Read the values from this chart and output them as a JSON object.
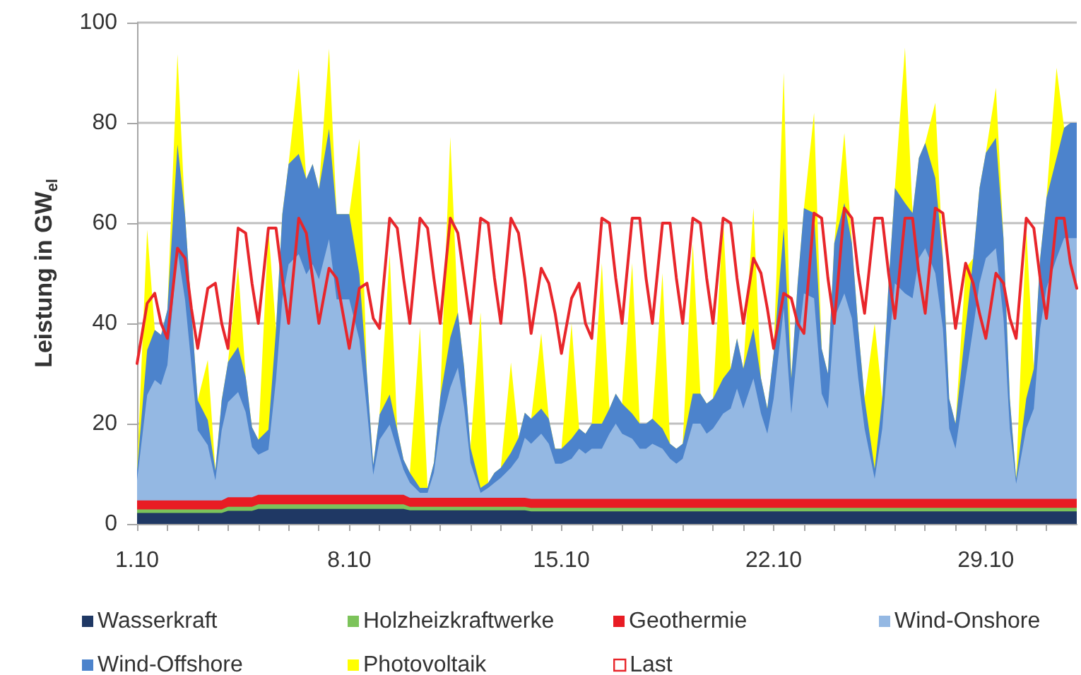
{
  "chart_data": {
    "type": "area",
    "stacked": true,
    "ylabel": "Leistung in GW$_{el}$",
    "xlim": [
      "--10-01",
      "--11-01"
    ],
    "xticks": [
      {
        "value": "--10-01",
        "label": "1.10"
      },
      {
        "value": "--10-02",
        "label": null
      },
      {
        "value": "--10-03",
        "label": null
      },
      {
        "value": "--10-04",
        "label": null
      },
      {
        "value": "--10-05",
        "label": null
      },
      {
        "value": "--10-06",
        "label": null
      },
      {
        "value": "--10-07",
        "label": null
      },
      {
        "value": "--10-08",
        "label": "8.10"
      },
      {
        "value": "--10-09",
        "label": null
      },
      {
        "value": "--10-10",
        "label": null
      },
      {
        "value": "--10-11",
        "label": null
      },
      {
        "value": "--10-12",
        "label": null
      },
      {
        "value": "--10-13",
        "label": null
      },
      {
        "value": "--10-14",
        "label": null
      },
      {
        "value": "--10-15",
        "label": "15.10"
      },
      {
        "value": "--10-16",
        "label": null
      },
      {
        "value": "--10-17",
        "label": null
      },
      {
        "value": "--10-18",
        "label": null
      },
      {
        "value": "--10-19",
        "label": null
      },
      {
        "value": "--10-20",
        "label": null
      },
      {
        "value": "--10-21",
        "label": null
      },
      {
        "value": "--10-22",
        "label": "22.10"
      },
      {
        "value": "--10-23",
        "label": null
      },
      {
        "value": "--10-24",
        "label": null
      },
      {
        "value": "--10-25",
        "label": null
      },
      {
        "value": "--10-26",
        "label": null
      },
      {
        "value": "--10-27",
        "label": null
      },
      {
        "value": "--10-28",
        "label": null
      },
      {
        "value": "--10-29",
        "label": "29.10"
      },
      {
        "value": "--10-30",
        "label": null
      },
      {
        "value": "--10-31",
        "label": null
      }
    ],
    "ylim": [
      0,
      100
    ],
    "yticks": [
      0,
      20,
      40,
      60,
      80,
      100
    ],
    "grid": "y",
    "legend": "bottom",
    "x": [
      "--10-01T00:00",
      "--10-01T08:00",
      "--10-01T14:00",
      "--10-01T19:00",
      "--10-02T00:00",
      "--10-02T08:00",
      "--10-02T14:00",
      "--10-02T19:00",
      "--10-03T00:00",
      "--10-03T08:00",
      "--10-03T14:00",
      "--10-03T19:00",
      "--10-04T00:00",
      "--10-04T08:00",
      "--10-04T14:00",
      "--10-04T19:00",
      "--10-05T00:00",
      "--10-05T08:00",
      "--10-05T14:00",
      "--10-05T19:00",
      "--10-06T00:00",
      "--10-06T08:00",
      "--10-06T14:00",
      "--10-06T19:00",
      "--10-07T00:00",
      "--10-07T08:00",
      "--10-07T14:00",
      "--10-07T19:00",
      "--10-08T00:00",
      "--10-08T08:00",
      "--10-08T14:00",
      "--10-08T19:00",
      "--10-09T00:00",
      "--10-09T08:00",
      "--10-09T14:00",
      "--10-09T19:00",
      "--10-10T00:00",
      "--10-10T08:00",
      "--10-10T14:00",
      "--10-10T19:00",
      "--10-11T00:00",
      "--10-11T08:00",
      "--10-11T14:00",
      "--10-11T19:00",
      "--10-12T00:00",
      "--10-12T08:00",
      "--10-12T14:00",
      "--10-12T19:00",
      "--10-13T00:00",
      "--10-13T08:00",
      "--10-13T14:00",
      "--10-13T19:00",
      "--10-14T00:00",
      "--10-14T08:00",
      "--10-14T14:00",
      "--10-14T19:00",
      "--10-15T00:00",
      "--10-15T08:00",
      "--10-15T14:00",
      "--10-15T19:00",
      "--10-16T00:00",
      "--10-16T08:00",
      "--10-16T14:00",
      "--10-16T19:00",
      "--10-17T00:00",
      "--10-17T08:00",
      "--10-17T14:00",
      "--10-17T19:00",
      "--10-18T00:00",
      "--10-18T08:00",
      "--10-18T14:00",
      "--10-18T19:00",
      "--10-19T00:00",
      "--10-19T08:00",
      "--10-19T14:00",
      "--10-19T19:00",
      "--10-20T00:00",
      "--10-20T08:00",
      "--10-20T14:00",
      "--10-20T19:00",
      "--10-21T00:00",
      "--10-21T08:00",
      "--10-21T14:00",
      "--10-21T19:00",
      "--10-22T00:00",
      "--10-22T08:00",
      "--10-22T14:00",
      "--10-22T19:00",
      "--10-23T00:00",
      "--10-23T08:00",
      "--10-23T14:00",
      "--10-23T19:00",
      "--10-24T00:00",
      "--10-24T08:00",
      "--10-24T14:00",
      "--10-24T19:00",
      "--10-25T00:00",
      "--10-25T08:00",
      "--10-25T14:00",
      "--10-25T19:00",
      "--10-26T00:00",
      "--10-26T08:00",
      "--10-26T14:00",
      "--10-26T19:00",
      "--10-27T00:00",
      "--10-27T08:00",
      "--10-27T14:00",
      "--10-27T19:00",
      "--10-28T00:00",
      "--10-28T08:00",
      "--10-28T14:00",
      "--10-28T19:00",
      "--10-29T00:00",
      "--10-29T08:00",
      "--10-29T14:00",
      "--10-29T19:00",
      "--10-30T00:00",
      "--10-30T08:00",
      "--10-30T14:00",
      "--10-30T19:00",
      "--10-31T00:00",
      "--10-31T08:00",
      "--10-31T14:00",
      "--10-31T19:00",
      "--11-01T00:00"
    ],
    "series": [
      {
        "name": "Wasserkraft",
        "color": "#1f3864",
        "values": [
          2.2,
          2.2,
          2.2,
          2.2,
          2.2,
          2.2,
          2.2,
          2.2,
          2.2,
          2.2,
          2.2,
          2.2,
          2.6,
          2.6,
          2.6,
          2.6,
          3,
          3,
          3,
          3,
          3,
          3,
          3,
          3,
          3,
          3,
          3,
          3,
          3,
          3,
          3,
          3,
          3,
          3,
          3,
          3,
          2.7,
          2.7,
          2.7,
          2.7,
          2.7,
          2.7,
          2.7,
          2.7,
          2.7,
          2.7,
          2.7,
          2.7,
          2.7,
          2.7,
          2.7,
          2.7,
          2.5,
          2.5,
          2.5,
          2.5,
          2.5,
          2.5,
          2.5,
          2.5,
          2.5,
          2.5,
          2.5,
          2.5,
          2.5,
          2.5,
          2.5,
          2.5,
          2.5,
          2.5,
          2.5,
          2.5,
          2.5,
          2.5,
          2.5,
          2.5,
          2.5,
          2.5,
          2.5,
          2.5,
          2.5,
          2.5,
          2.5,
          2.5,
          2.5,
          2.5,
          2.5,
          2.5,
          2.5,
          2.5,
          2.5,
          2.5,
          2.5,
          2.5,
          2.5,
          2.5,
          2.5,
          2.5,
          2.5,
          2.5,
          2.5,
          2.5,
          2.5,
          2.5,
          2.5,
          2.5,
          2.5,
          2.5,
          2.5,
          2.5,
          2.5,
          2.5,
          2.5,
          2.5,
          2.5,
          2.5,
          2.5,
          2.5,
          2.5,
          2.5,
          2.5,
          2.5,
          2.5,
          2.5,
          2.5
        ]
      },
      {
        "name": "Holzheizkraftwerke",
        "color": "#7cc35a",
        "values": [
          0.7,
          0.7,
          0.7,
          0.7,
          0.7,
          0.7,
          0.7,
          0.7,
          0.7,
          0.7,
          0.7,
          0.7,
          0.8,
          0.8,
          0.8,
          0.8,
          0.9,
          0.9,
          0.9,
          0.9,
          0.9,
          0.9,
          0.9,
          0.9,
          0.9,
          0.9,
          0.9,
          0.9,
          0.9,
          0.9,
          0.9,
          0.9,
          0.9,
          0.9,
          0.9,
          0.9,
          0.7,
          0.7,
          0.7,
          0.7,
          0.7,
          0.7,
          0.7,
          0.7,
          0.7,
          0.7,
          0.7,
          0.7,
          0.7,
          0.7,
          0.7,
          0.7,
          0.7,
          0.7,
          0.7,
          0.7,
          0.7,
          0.7,
          0.7,
          0.7,
          0.7,
          0.7,
          0.7,
          0.7,
          0.7,
          0.7,
          0.7,
          0.7,
          0.7,
          0.7,
          0.7,
          0.7,
          0.7,
          0.7,
          0.7,
          0.7,
          0.7,
          0.7,
          0.7,
          0.7,
          0.7,
          0.7,
          0.7,
          0.7,
          0.7,
          0.7,
          0.7,
          0.7,
          0.7,
          0.7,
          0.7,
          0.7,
          0.7,
          0.7,
          0.7,
          0.7,
          0.7,
          0.7,
          0.7,
          0.7,
          0.7,
          0.7,
          0.7,
          0.7,
          0.7,
          0.7,
          0.7,
          0.7,
          0.7,
          0.7,
          0.7,
          0.7,
          0.7,
          0.7,
          0.7,
          0.7,
          0.7,
          0.7,
          0.7,
          0.7,
          0.7,
          0.7,
          0.7,
          0.7,
          0.7
        ]
      },
      {
        "name": "Geothermie",
        "color": "#e81c24",
        "values": [
          1.8,
          1.8,
          1.8,
          1.8,
          1.8,
          1.8,
          1.8,
          1.8,
          1.8,
          1.8,
          1.8,
          1.8,
          1.9,
          1.9,
          1.9,
          1.9,
          1.9,
          1.9,
          1.9,
          1.9,
          1.9,
          1.9,
          1.9,
          1.9,
          1.9,
          1.9,
          1.9,
          1.9,
          1.9,
          1.9,
          1.9,
          1.9,
          1.9,
          1.9,
          1.9,
          1.9,
          1.8,
          1.8,
          1.8,
          1.8,
          1.8,
          1.8,
          1.8,
          1.8,
          1.8,
          1.8,
          1.8,
          1.8,
          1.8,
          1.8,
          1.8,
          1.8,
          1.8,
          1.8,
          1.8,
          1.8,
          1.8,
          1.8,
          1.8,
          1.8,
          1.8,
          1.8,
          1.8,
          1.8,
          1.8,
          1.8,
          1.8,
          1.8,
          1.8,
          1.8,
          1.8,
          1.8,
          1.8,
          1.8,
          1.8,
          1.8,
          1.8,
          1.8,
          1.8,
          1.8,
          1.8,
          1.8,
          1.8,
          1.8,
          1.8,
          1.8,
          1.8,
          1.8,
          1.8,
          1.8,
          1.8,
          1.8,
          1.8,
          1.8,
          1.8,
          1.8,
          1.8,
          1.8,
          1.8,
          1.8,
          1.8,
          1.8,
          1.8,
          1.8,
          1.8,
          1.8,
          1.8,
          1.8,
          1.8,
          1.8,
          1.8,
          1.8,
          1.8,
          1.8,
          1.8,
          1.8,
          1.8,
          1.8,
          1.8,
          1.8,
          1.8,
          1.8,
          1.8,
          1.8,
          1.8
        ]
      },
      {
        "name": "Wind-Onshore",
        "color": "#94b8e3",
        "values": [
          4,
          21,
          24,
          23,
          27,
          50,
          40,
          27,
          14,
          11,
          4,
          14,
          19,
          21,
          17,
          10,
          8,
          9,
          23,
          39,
          46,
          48,
          44,
          46,
          43,
          51,
          39,
          39,
          39,
          31,
          17,
          4,
          11,
          14,
          9,
          5,
          3,
          1,
          1,
          5,
          14,
          22,
          26,
          18,
          7,
          1,
          2,
          3,
          4,
          6,
          8,
          12,
          11,
          13,
          11,
          7,
          7,
          8,
          10,
          9,
          10,
          10,
          13,
          15,
          13,
          12,
          10,
          10,
          11,
          10,
          8,
          7,
          8,
          15,
          15,
          13,
          14,
          17,
          18,
          22,
          18,
          24,
          17,
          13,
          20,
          38,
          17,
          30,
          41,
          40,
          21,
          18,
          36,
          41,
          36,
          24,
          14,
          4,
          14,
          30,
          43,
          41,
          40,
          48,
          50,
          45,
          34,
          14,
          10,
          24,
          34,
          43,
          48,
          50,
          36,
          14,
          3,
          14,
          18,
          34,
          42,
          48,
          52,
          52,
          52
        ]
      },
      {
        "name": "Wind-Offshore",
        "color": "#4c83cc",
        "values": [
          2,
          9,
          10,
          10,
          11,
          21,
          17,
          11,
          6,
          5,
          2,
          6,
          8,
          9,
          7,
          4,
          3,
          4,
          10,
          17,
          20,
          20,
          19,
          20,
          18,
          22,
          17,
          17,
          17,
          13,
          7,
          2,
          5,
          6,
          4,
          2,
          2,
          1,
          1,
          2,
          6,
          10,
          11,
          8,
          3,
          1,
          1,
          2,
          2,
          3,
          4,
          5,
          5,
          5,
          5,
          3,
          3,
          4,
          4,
          4,
          5,
          5,
          5,
          6,
          6,
          5,
          5,
          5,
          5,
          4,
          3,
          3,
          3,
          6,
          6,
          6,
          6,
          7,
          8,
          10,
          8,
          10,
          7,
          5,
          9,
          16,
          7,
          13,
          17,
          17,
          9,
          7,
          15,
          18,
          15,
          10,
          6,
          2,
          6,
          13,
          19,
          18,
          17,
          20,
          21,
          19,
          14,
          6,
          5,
          10,
          14,
          19,
          21,
          22,
          16,
          6,
          1,
          6,
          8,
          14,
          18,
          20,
          22,
          23,
          23
        ]
      },
      {
        "name": "Photovoltaik",
        "color": "#ffff00",
        "values": [
          0,
          24,
          0,
          0,
          0,
          18,
          0,
          0,
          0,
          12,
          0,
          0,
          0,
          16,
          0,
          0,
          0,
          40,
          0,
          0,
          0,
          17,
          0,
          0,
          0,
          16,
          0,
          0,
          0,
          27,
          0,
          0,
          0,
          28,
          0,
          0,
          0,
          32,
          0,
          0,
          0,
          40,
          0,
          0,
          0,
          35,
          0,
          0,
          0,
          18,
          0,
          0,
          0,
          15,
          0,
          0,
          0,
          23,
          0,
          0,
          0,
          32,
          0,
          0,
          0,
          30,
          0,
          0,
          0,
          31,
          0,
          0,
          0,
          30,
          0,
          0,
          0,
          32,
          0,
          0,
          0,
          24,
          0,
          0,
          0,
          31,
          0,
          0,
          0,
          20,
          0,
          0,
          0,
          14,
          0,
          0,
          0,
          29,
          0,
          0,
          0,
          31,
          0,
          0,
          0,
          15,
          0,
          0,
          0,
          12,
          0,
          0,
          0,
          10,
          0,
          0,
          0,
          34,
          0,
          0,
          0,
          18,
          0,
          0,
          0
        ]
      },
      {
        "name": "Last",
        "type": "line",
        "color": "#e8262b",
        "values": [
          32,
          44,
          46,
          40,
          37,
          55,
          53,
          43,
          35,
          47,
          48,
          40,
          35,
          59,
          58,
          48,
          40,
          59,
          59,
          49,
          40,
          61,
          58,
          49,
          40,
          51,
          49,
          42,
          35,
          47,
          48,
          41,
          39,
          61,
          59,
          49,
          40,
          61,
          59,
          49,
          40,
          61,
          58,
          49,
          40,
          61,
          60,
          49,
          40,
          61,
          58,
          49,
          38,
          51,
          48,
          42,
          34,
          45,
          48,
          40,
          37,
          61,
          60,
          49,
          40,
          61,
          61,
          49,
          40,
          60,
          60,
          49,
          40,
          61,
          60,
          49,
          40,
          61,
          60,
          49,
          40,
          53,
          50,
          43,
          35,
          46,
          45,
          40,
          38,
          62,
          61,
          49,
          40,
          63,
          61,
          50,
          42,
          61,
          61,
          50,
          41,
          61,
          61,
          50,
          42,
          63,
          62,
          50,
          39,
          52,
          48,
          42,
          37,
          50,
          48,
          41,
          37,
          61,
          59,
          49,
          41,
          61,
          61,
          52,
          47
        ]
      }
    ]
  }
}
